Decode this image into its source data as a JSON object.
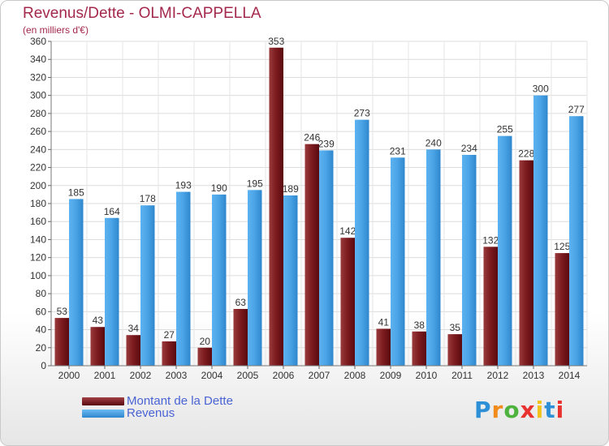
{
  "header": {
    "title": "Revenus/Dette - OLMI-CAPPELLA",
    "subtitle": "(en milliers d'€)"
  },
  "legend": {
    "debt_label": "Montant de la Dette",
    "revenue_label": "Revenus"
  },
  "logo": {
    "text": "Proxiti"
  },
  "chart_data": {
    "type": "bar",
    "title": "Revenus/Dette - OLMI-CAPPELLA",
    "subtitle": "(en milliers d'€)",
    "xlabel": "",
    "ylabel": "",
    "ylim": [
      0,
      360
    ],
    "ytick_step": 20,
    "grid": true,
    "legend_position": "bottom-left",
    "categories": [
      "2000",
      "2001",
      "2002",
      "2003",
      "2004",
      "2005",
      "2006",
      "2007",
      "2008",
      "2009",
      "2010",
      "2011",
      "2012",
      "2013",
      "2014"
    ],
    "series": [
      {
        "name": "Montant de la Dette",
        "color": "#7b1a1e",
        "values": [
          53,
          43,
          34,
          27,
          20,
          63,
          353,
          246,
          142,
          41,
          38,
          35,
          132,
          228,
          125
        ]
      },
      {
        "name": "Revenus",
        "color": "#4aa3e6",
        "values": [
          185,
          164,
          178,
          193,
          190,
          195,
          189,
          239,
          273,
          231,
          240,
          234,
          255,
          300,
          277
        ]
      }
    ]
  }
}
